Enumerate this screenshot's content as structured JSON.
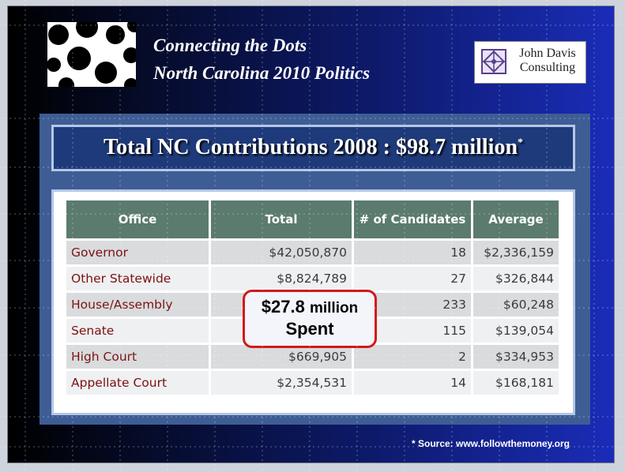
{
  "slide": {
    "title_line1": "Connecting the Dots",
    "title_line2": "North Carolina 2010 Politics",
    "logo_text_line1": "John Davis",
    "logo_text_line2": "Consulting",
    "header": "Total NC Contributions 2008 : $98.7 million",
    "header_mark": "*",
    "callout_amount": "$27.8",
    "callout_unit": "million",
    "callout_line2": "Spent",
    "source": "* Source: www.followthemoney.org"
  },
  "table": {
    "columns": [
      "Office",
      "Total",
      "# of Candidates",
      "Average"
    ],
    "rows": [
      {
        "office": "Governor",
        "total": "$42,050,870",
        "candidates": "18",
        "average": "$2,336,159"
      },
      {
        "office": "Other Statewide",
        "total": "$8,824,789",
        "candidates": "27",
        "average": "$326,844"
      },
      {
        "office": "House/Assembly",
        "total": "",
        "candidates": "233",
        "average": "$60,248"
      },
      {
        "office": "Senate",
        "total": "",
        "candidates": "115",
        "average": "$139,054"
      },
      {
        "office": "High Court",
        "total": "$669,905",
        "candidates": "2",
        "average": "$334,953"
      },
      {
        "office": "Appellate Court",
        "total": "$2,354,531",
        "candidates": "14",
        "average": "$168,181"
      }
    ]
  },
  "icons": {
    "logo_dots": "dots-logo-icon",
    "consulting_mark": "jdc-emblem-icon"
  },
  "colors": {
    "table_header": "#5b7b6e",
    "office_text": "#7a1010",
    "callout_border": "#d21919",
    "panel": "#3e5d94"
  }
}
